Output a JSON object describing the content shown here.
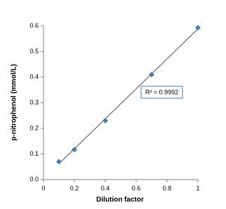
{
  "chart_data": {
    "type": "scatter",
    "xlabel": "Dilution factor",
    "ylabel": "p-nitrophenol (mmol/L)",
    "annotation": "R² = 0.9992",
    "series": [
      {
        "x": [
          0.1,
          0.2,
          0.4,
          0.7,
          1
        ],
        "values": [
          0.07,
          0.117,
          0.23,
          0.41,
          0.593
        ],
        "color": "#4a7ebb"
      }
    ],
    "trendline": true,
    "xlim": [
      0,
      1
    ],
    "xticks": [
      0,
      0.2,
      0.4,
      0.6,
      0.8,
      1
    ],
    "ylim": [
      0,
      0.6
    ],
    "yticks": [
      {
        "value": 0,
        "label": "0.0"
      },
      0.1,
      0.2,
      0.3,
      0.4,
      0.5,
      0.6
    ]
  }
}
